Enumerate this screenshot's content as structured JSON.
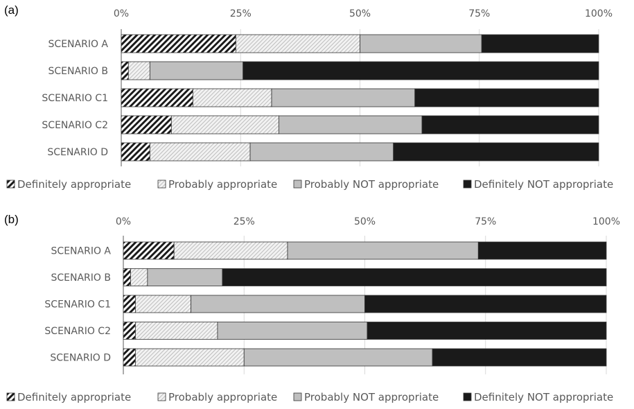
{
  "legend": [
    {
      "label": "Definitely appropriate",
      "fill": "hatch-dense"
    },
    {
      "label": "Probably appropriate",
      "fill": "hatch-light"
    },
    {
      "label": "Probably NOT appropriate",
      "fill": "#bfbfbf"
    },
    {
      "label": "Definitely NOT appropriate",
      "fill": "#1a1a1a"
    }
  ],
  "colors": {
    "definitely_appropriate": "#1a1a1a",
    "probably_appropriate": "#d9d9d9",
    "probably_not_appropriate": "#bfbfbf",
    "definitely_not_appropriate": "#1a1a1a",
    "axis": "#595959",
    "gridline": "#d9d9d9"
  },
  "chart_data": [
    {
      "type": "bar",
      "orientation": "horizontal-stacked-100",
      "panel_label": "(a)",
      "categories": [
        "SCENARIO A",
        "SCENARIO B",
        "SCENARIO C1",
        "SCENARIO C2",
        "SCENARIO D"
      ],
      "x_ticks": [
        "0%",
        "25%",
        "50%",
        "75%",
        "100%"
      ],
      "xlim": [
        0,
        100
      ],
      "grid": true,
      "legend_position": "bottom",
      "series": [
        {
          "name": "Definitely appropriate",
          "values": [
            24,
            1.5,
            15,
            10.5,
            6
          ]
        },
        {
          "name": "Probably appropriate",
          "values": [
            26,
            4.5,
            16.5,
            22.5,
            21
          ]
        },
        {
          "name": "Probably NOT appropriate",
          "values": [
            25.5,
            19.5,
            30,
            30,
            30
          ]
        },
        {
          "name": "Definitely NOT appropriate",
          "values": [
            24.5,
            74.5,
            38.5,
            37,
            43
          ]
        }
      ]
    },
    {
      "type": "bar",
      "orientation": "horizontal-stacked-100",
      "panel_label": "(b)",
      "categories": [
        "SCENARIO A",
        "SCENARIO B",
        "SCENARIO C1",
        "SCENARIO C2",
        "SCENARIO D"
      ],
      "x_ticks": [
        "0%",
        "25%",
        "50%",
        "75%",
        "100%"
      ],
      "xlim": [
        0,
        100
      ],
      "grid": true,
      "legend_position": "bottom",
      "series": [
        {
          "name": "Definitely appropriate",
          "values": [
            10.5,
            1.5,
            2.5,
            2.5,
            2.5
          ]
        },
        {
          "name": "Probably appropriate",
          "values": [
            23.5,
            3.5,
            11.5,
            17,
            22.5
          ]
        },
        {
          "name": "Probably NOT appropriate",
          "values": [
            39.5,
            15.5,
            36,
            31,
            39
          ]
        },
        {
          "name": "Definitely NOT appropriate",
          "values": [
            26.5,
            79.5,
            50,
            49.5,
            36
          ]
        }
      ]
    }
  ]
}
